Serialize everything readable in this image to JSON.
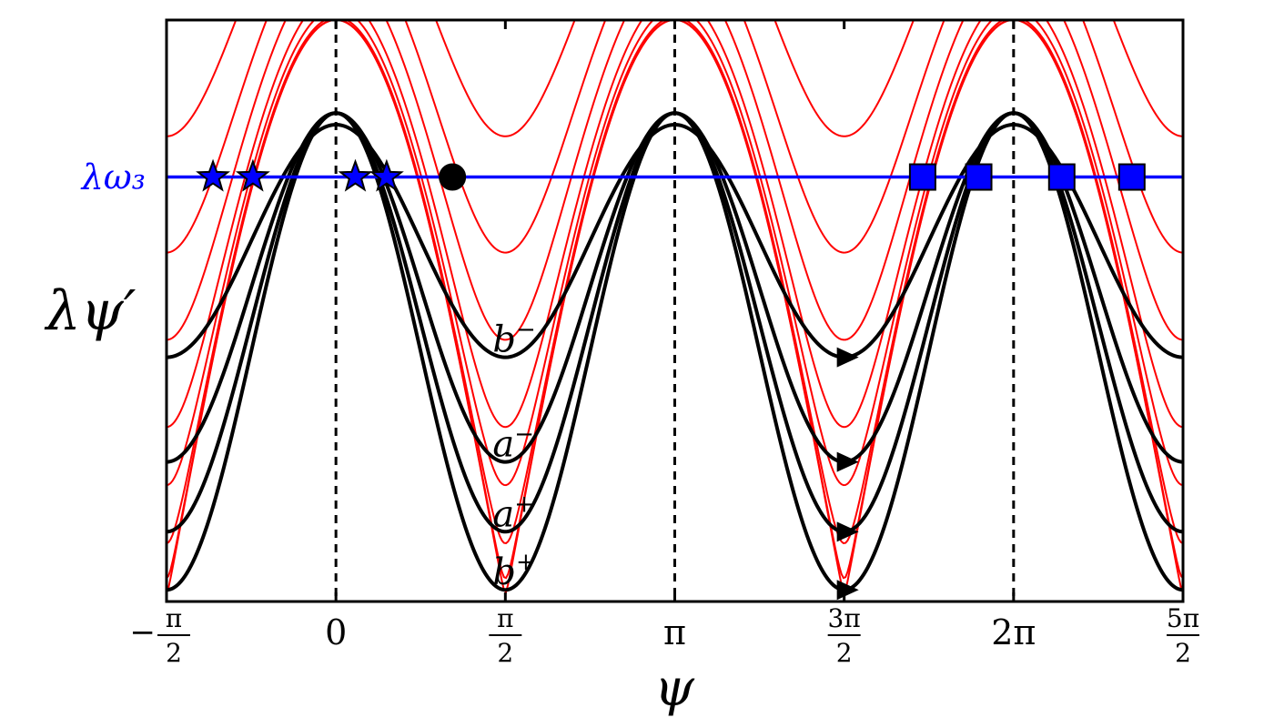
{
  "chart_data": {
    "type": "line",
    "title": "",
    "xlabel": "ψ",
    "ylabel": "λψ′",
    "xlim": [
      -1.5708,
      7.854
    ],
    "ylim": [
      0,
      1
    ],
    "grid": false,
    "x_ticks": [
      {
        "value": -1.5708,
        "label": "−π/2",
        "num": "π",
        "den": "2",
        "sign": "−",
        "fraction": true
      },
      {
        "value": 0,
        "label": "0",
        "fraction": false
      },
      {
        "value": 1.5708,
        "label": "π/2",
        "num": "π",
        "den": "2",
        "sign": "",
        "fraction": true
      },
      {
        "value": 3.1416,
        "label": "π",
        "fraction": false
      },
      {
        "value": 4.7124,
        "label": "3π/2",
        "num": "3π",
        "den": "2",
        "sign": "",
        "fraction": true
      },
      {
        "value": 6.2832,
        "label": "2π",
        "fraction": false
      },
      {
        "value": 7.854,
        "label": "5π/2",
        "num": "5π",
        "den": "2",
        "sign": "",
        "fraction": true
      }
    ],
    "vertical_dashed_lines": [
      0,
      3.1416,
      6.2832
    ],
    "hline": {
      "label": "λω₃",
      "y": 0.73,
      "color": "#0000ff"
    },
    "red_curves": {
      "color": "#ff0000",
      "amplitudes": [
        0.8,
        0.6,
        0.45,
        0.3,
        0.2,
        0.1,
        0.04,
        0.015
      ]
    },
    "black_curves": [
      {
        "label": "b⁻",
        "base": "b",
        "sup": "−",
        "center": 0.62,
        "amp": 0.2,
        "arrow_x": 4.7124
      },
      {
        "label": "a⁻",
        "base": "a",
        "sup": "−",
        "center": 0.54,
        "amp": 0.3,
        "arrow_x": 4.7124
      },
      {
        "label": "a⁺",
        "base": "a",
        "sup": "+",
        "center": 0.48,
        "amp": 0.36,
        "arrow_x": 4.7124
      },
      {
        "label": "b⁺",
        "base": "b",
        "sup": "+",
        "center": 0.43,
        "amp": 0.41,
        "arrow_x": 4.7124
      }
    ],
    "markers": {
      "stars": [
        -1.14,
        -0.77,
        0.18,
        0.47
      ],
      "circle": [
        1.08
      ],
      "squares": [
        5.44,
        5.96,
        6.73,
        7.38
      ],
      "star_color": "#0000ff",
      "square_color": "#0000ff",
      "circle_color": "#000000"
    }
  }
}
